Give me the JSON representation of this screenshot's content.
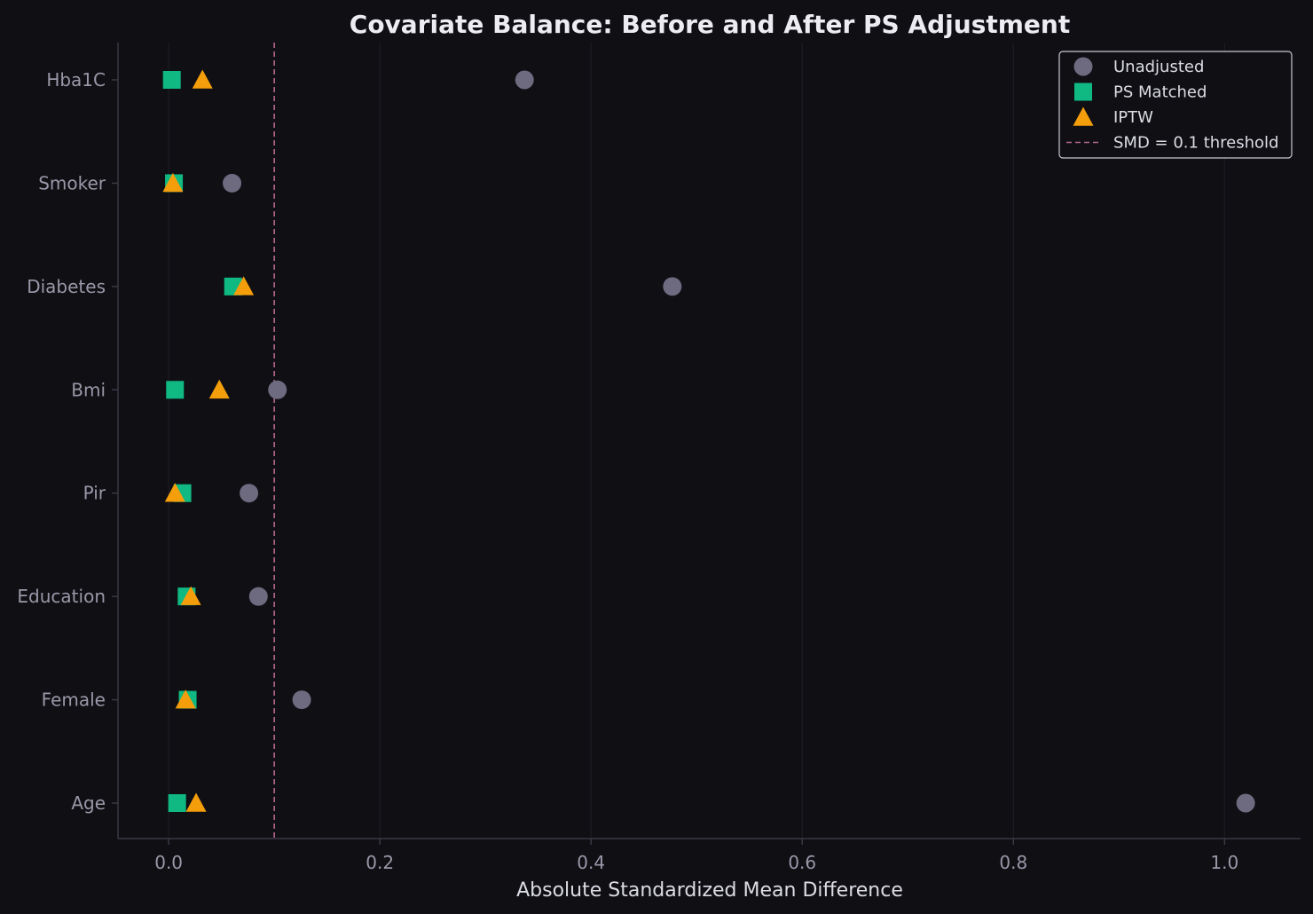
{
  "chart_data": {
    "type": "scatter",
    "title": "Covariate Balance: Before and After PS Adjustment",
    "xlabel": "Absolute Standardized Mean Difference",
    "ylabel": "",
    "xlim": [
      -0.048,
      1.072
    ],
    "xticks": [
      0.0,
      0.2,
      0.4,
      0.6,
      0.8,
      1.0
    ],
    "xtick_labels": [
      "0.0",
      "0.2",
      "0.4",
      "0.6",
      "0.8",
      "1.0"
    ],
    "categories": [
      "Hba1C",
      "Smoker",
      "Diabetes",
      "Bmi",
      "Pir",
      "Education",
      "Female",
      "Age"
    ],
    "threshold": 0.1,
    "grid": "x-only",
    "legend_position": "top-right",
    "series": [
      {
        "name": "Unadjusted",
        "marker": "circle",
        "color": "#6e6a80",
        "values": [
          0.337,
          0.06,
          0.477,
          0.103,
          0.076,
          0.085,
          0.126,
          1.02
        ]
      },
      {
        "name": "PS Matched",
        "marker": "square",
        "color": "#10b981",
        "values": [
          0.003,
          0.005,
          0.061,
          0.006,
          0.013,
          0.017,
          0.018,
          0.008
        ]
      },
      {
        "name": "IPTW",
        "marker": "triangle",
        "color": "#f59e0b",
        "values": [
          0.032,
          0.004,
          0.071,
          0.048,
          0.006,
          0.021,
          0.016,
          0.026
        ]
      }
    ],
    "threshold_legend_label": "SMD = 0.1 threshold",
    "colors": {
      "background": "#0f0f14",
      "axis": "#3a3944",
      "grid": "#1c1c24",
      "threshold": "#b5688e",
      "legend_border": "#c8c8d0"
    }
  }
}
